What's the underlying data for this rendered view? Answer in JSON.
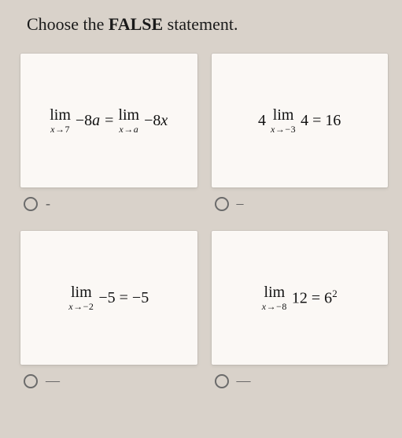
{
  "prompt": {
    "pre": "Choose the ",
    "bold": "FALSE",
    "post": " statement."
  },
  "colors": {
    "page_bg": "#d9d2ca",
    "card_bg": "#fbf8f5",
    "text": "#111111",
    "radio_border": "#6b6b6b",
    "dash": "#5a5a5a"
  },
  "font_sizes": {
    "prompt": 22,
    "math_main": 20,
    "math_sub": 12,
    "dash": 18
  },
  "options": [
    {
      "id": "opt-a",
      "radio_label": "-",
      "math": {
        "lim1": {
          "word": "lim",
          "sub_left": "x",
          "arrow": "→",
          "sub_right": "7"
        },
        "expr1_pre": " −8",
        "expr1_var": "a",
        "eq": " = ",
        "lim2": {
          "word": "lim",
          "sub_left": "x",
          "arrow": "→",
          "sub_right_var": "a"
        },
        "expr2_pre": " −8",
        "expr2_var": "x"
      }
    },
    {
      "id": "opt-b",
      "radio_label": "–",
      "math": {
        "coef": "4 ",
        "lim1": {
          "word": "lim",
          "sub_left": "x",
          "arrow": "→",
          "sub_right": "−3"
        },
        "expr": " 4 = 16"
      }
    },
    {
      "id": "opt-c",
      "radio_label": "—",
      "math": {
        "lim1": {
          "word": "lim",
          "sub_left": "x",
          "arrow": "→",
          "sub_right": "−2"
        },
        "expr": " −5 = −5"
      }
    },
    {
      "id": "opt-d",
      "radio_label": "—",
      "math": {
        "lim1": {
          "word": "lim",
          "sub_left": "x",
          "arrow": "→",
          "sub_right": "−8"
        },
        "expr_pre": " 12 = 6",
        "sup": "2"
      }
    }
  ]
}
